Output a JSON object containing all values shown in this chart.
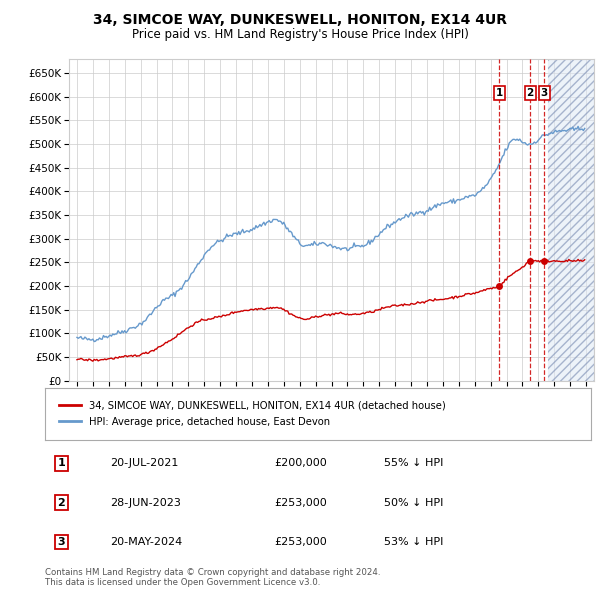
{
  "title": "34, SIMCOE WAY, DUNKESWELL, HONITON, EX14 4UR",
  "subtitle": "Price paid vs. HM Land Registry's House Price Index (HPI)",
  "legend_label_red": "34, SIMCOE WAY, DUNKESWELL, HONITON, EX14 4UR (detached house)",
  "legend_label_blue": "HPI: Average price, detached house, East Devon",
  "footer": "Contains HM Land Registry data © Crown copyright and database right 2024.\nThis data is licensed under the Open Government Licence v3.0.",
  "transactions": [
    {
      "num": 1,
      "date": "20-JUL-2021",
      "price": "£200,000",
      "hpi": "55% ↓ HPI",
      "x_year": 2021.55
    },
    {
      "num": 2,
      "date": "28-JUN-2023",
      "price": "£253,000",
      "hpi": "50% ↓ HPI",
      "x_year": 2023.49
    },
    {
      "num": 3,
      "date": "20-MAY-2024",
      "price": "£253,000",
      "hpi": "53% ↓ HPI",
      "x_year": 2024.38
    }
  ],
  "hatch_start": 2024.58,
  "hatch_end": 2027.5,
  "ylim": [
    0,
    680000
  ],
  "xlim_start": 1994.5,
  "xlim_end": 2027.5,
  "red_color": "#cc0000",
  "blue_color": "#6699cc",
  "blue_fill_color": "#dde8f5",
  "background_color": "#ffffff",
  "grid_color": "#cccccc",
  "hpi_keypoints": [
    [
      1995.0,
      90000
    ],
    [
      1995.5,
      88000
    ],
    [
      1996.0,
      87000
    ],
    [
      1996.5,
      90000
    ],
    [
      1997.0,
      95000
    ],
    [
      1997.5,
      100000
    ],
    [
      1998.0,
      105000
    ],
    [
      1998.5,
      112000
    ],
    [
      1999.0,
      120000
    ],
    [
      1999.5,
      135000
    ],
    [
      2000.0,
      155000
    ],
    [
      2000.5,
      170000
    ],
    [
      2001.0,
      180000
    ],
    [
      2001.5,
      195000
    ],
    [
      2002.0,
      215000
    ],
    [
      2002.5,
      240000
    ],
    [
      2003.0,
      265000
    ],
    [
      2003.5,
      285000
    ],
    [
      2004.0,
      295000
    ],
    [
      2004.5,
      305000
    ],
    [
      2005.0,
      310000
    ],
    [
      2005.5,
      315000
    ],
    [
      2006.0,
      320000
    ],
    [
      2006.5,
      328000
    ],
    [
      2007.0,
      335000
    ],
    [
      2007.5,
      340000
    ],
    [
      2008.0,
      330000
    ],
    [
      2008.5,
      310000
    ],
    [
      2009.0,
      290000
    ],
    [
      2009.5,
      285000
    ],
    [
      2010.0,
      288000
    ],
    [
      2010.5,
      290000
    ],
    [
      2011.0,
      285000
    ],
    [
      2011.5,
      280000
    ],
    [
      2012.0,
      278000
    ],
    [
      2012.5,
      282000
    ],
    [
      2013.0,
      285000
    ],
    [
      2013.5,
      295000
    ],
    [
      2014.0,
      310000
    ],
    [
      2014.5,
      325000
    ],
    [
      2015.0,
      335000
    ],
    [
      2015.5,
      345000
    ],
    [
      2016.0,
      350000
    ],
    [
      2016.5,
      355000
    ],
    [
      2017.0,
      360000
    ],
    [
      2017.5,
      368000
    ],
    [
      2018.0,
      375000
    ],
    [
      2018.5,
      378000
    ],
    [
      2019.0,
      382000
    ],
    [
      2019.5,
      388000
    ],
    [
      2020.0,
      392000
    ],
    [
      2020.5,
      405000
    ],
    [
      2021.0,
      425000
    ],
    [
      2021.5,
      455000
    ],
    [
      2022.0,
      490000
    ],
    [
      2022.5,
      510000
    ],
    [
      2023.0,
      505000
    ],
    [
      2023.5,
      500000
    ],
    [
      2024.0,
      510000
    ],
    [
      2024.5,
      520000
    ],
    [
      2025.0,
      525000
    ],
    [
      2025.5,
      528000
    ],
    [
      2026.0,
      530000
    ],
    [
      2026.5,
      532000
    ]
  ],
  "red_keypoints": [
    [
      1995.0,
      45000
    ],
    [
      1995.5,
      44000
    ],
    [
      1996.0,
      43000
    ],
    [
      1996.5,
      44000
    ],
    [
      1997.0,
      46000
    ],
    [
      1997.5,
      48000
    ],
    [
      1998.0,
      50000
    ],
    [
      1998.5,
      52000
    ],
    [
      1999.0,
      55000
    ],
    [
      1999.5,
      60000
    ],
    [
      2000.0,
      68000
    ],
    [
      2000.5,
      78000
    ],
    [
      2001.0,
      88000
    ],
    [
      2001.5,
      100000
    ],
    [
      2002.0,
      112000
    ],
    [
      2002.5,
      122000
    ],
    [
      2003.0,
      128000
    ],
    [
      2003.5,
      132000
    ],
    [
      2004.0,
      135000
    ],
    [
      2004.5,
      140000
    ],
    [
      2005.0,
      145000
    ],
    [
      2005.5,
      148000
    ],
    [
      2006.0,
      150000
    ],
    [
      2006.5,
      152000
    ],
    [
      2007.0,
      153000
    ],
    [
      2007.5,
      155000
    ],
    [
      2008.0,
      150000
    ],
    [
      2008.5,
      140000
    ],
    [
      2009.0,
      132000
    ],
    [
      2009.5,
      130000
    ],
    [
      2010.0,
      135000
    ],
    [
      2010.5,
      138000
    ],
    [
      2011.0,
      140000
    ],
    [
      2011.5,
      142000
    ],
    [
      2012.0,
      140000
    ],
    [
      2012.5,
      140000
    ],
    [
      2013.0,
      142000
    ],
    [
      2013.5,
      145000
    ],
    [
      2014.0,
      150000
    ],
    [
      2014.5,
      155000
    ],
    [
      2015.0,
      158000
    ],
    [
      2015.5,
      160000
    ],
    [
      2016.0,
      162000
    ],
    [
      2016.5,
      165000
    ],
    [
      2017.0,
      168000
    ],
    [
      2017.5,
      170000
    ],
    [
      2018.0,
      172000
    ],
    [
      2018.5,
      175000
    ],
    [
      2019.0,
      178000
    ],
    [
      2019.5,
      182000
    ],
    [
      2020.0,
      185000
    ],
    [
      2020.5,
      190000
    ],
    [
      2021.0,
      195000
    ],
    [
      2021.55,
      200000
    ],
    [
      2022.0,
      215000
    ],
    [
      2022.5,
      228000
    ],
    [
      2023.0,
      240000
    ],
    [
      2023.49,
      253000
    ],
    [
      2024.0,
      253000
    ],
    [
      2024.38,
      253000
    ],
    [
      2024.5,
      253000
    ],
    [
      2025.0,
      253000
    ],
    [
      2025.5,
      253000
    ],
    [
      2026.0,
      253000
    ]
  ]
}
